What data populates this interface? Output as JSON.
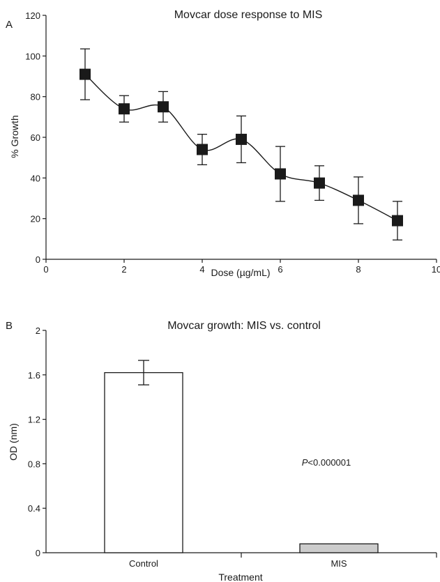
{
  "chart_data": [
    {
      "panel_label": "A",
      "type": "line",
      "title": "Movcar dose response to MIS",
      "xlabel": "Dose (µg/mL)",
      "ylabel": "% Growth",
      "xlim": [
        0,
        10
      ],
      "ylim": [
        0,
        120
      ],
      "xticks": [
        "0",
        "2",
        "4",
        "6",
        "8",
        "10"
      ],
      "yticks": [
        "0",
        "20",
        "40",
        "60",
        "80",
        "100",
        "120"
      ],
      "series": [
        {
          "x": [
            1,
            2,
            3,
            4,
            5,
            6,
            7,
            8,
            9
          ],
          "y": [
            91,
            74,
            75,
            54,
            59,
            42,
            37.5,
            29,
            19
          ],
          "err": [
            12.5,
            6.5,
            7.5,
            7.5,
            11.5,
            13.5,
            8.5,
            11.5,
            9.5
          ],
          "marker": "square",
          "color": "#1a1a1a",
          "smooth": true
        }
      ],
      "grid": false
    },
    {
      "panel_label": "B",
      "type": "bar",
      "title": "Movcar growth: MIS vs. control",
      "xlabel": "Treatment",
      "ylabel": "OD (nm)",
      "ylim": [
        0,
        2
      ],
      "yticks": [
        "0",
        "0.4",
        "0.8",
        "1.2",
        "1.6",
        "2"
      ],
      "categories": [
        "Control",
        "MIS"
      ],
      "values": [
        1.62,
        0.08
      ],
      "errors": [
        0.11,
        0
      ],
      "bar_colors": [
        "#ffffff",
        "#cccccc"
      ],
      "annotation": {
        "prefix": "P",
        "text": "<0.000001"
      },
      "grid": false
    }
  ]
}
